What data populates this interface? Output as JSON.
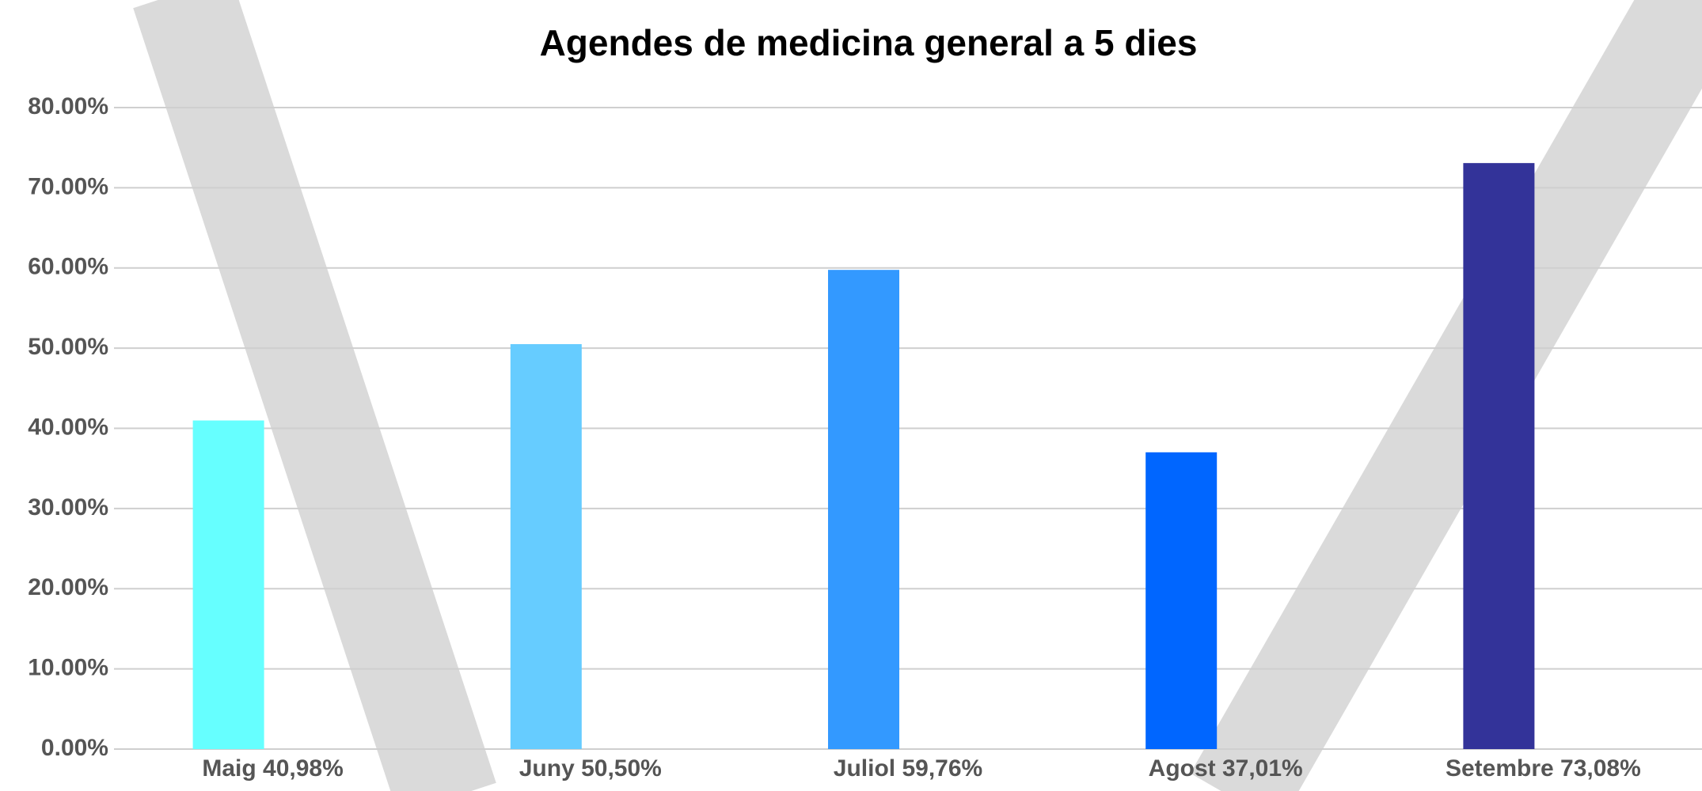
{
  "chart_data": {
    "type": "bar",
    "title": "Agendes de medicina general a 5 dies",
    "categories": [
      "Maig 40,98%",
      "Juny 50,50%",
      "Juliol 59,76%",
      "Agost 37,01%",
      "Setembre 73,08%"
    ],
    "values": [
      40.98,
      50.5,
      59.76,
      37.01,
      73.08
    ],
    "colors": [
      "#66ffff",
      "#66ccff",
      "#3399ff",
      "#0066ff",
      "#333399"
    ],
    "ylim": [
      0,
      80
    ],
    "yticks": [
      {
        "value": 0,
        "label": "0.00%"
      },
      {
        "value": 10,
        "label": "10.00%"
      },
      {
        "value": 20,
        "label": "20.00%"
      },
      {
        "value": 30,
        "label": "30.00%"
      },
      {
        "value": 40,
        "label": "40.00%"
      },
      {
        "value": 50,
        "label": "50.00%"
      },
      {
        "value": 60,
        "label": "60.00%"
      },
      {
        "value": 70,
        "label": "70.00%"
      },
      {
        "value": 80,
        "label": "80.00%"
      }
    ],
    "grid": true
  }
}
